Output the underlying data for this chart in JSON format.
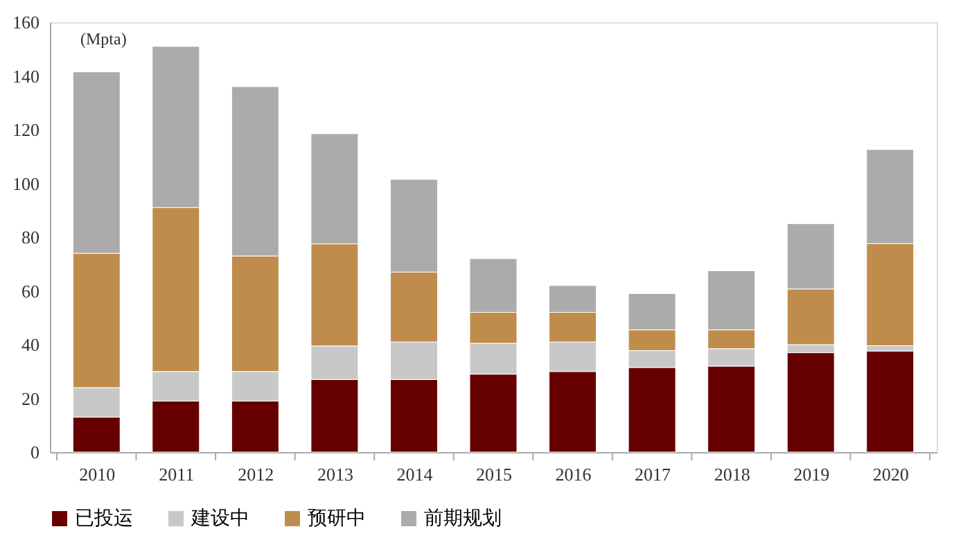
{
  "chart_data": {
    "type": "bar",
    "stacked": true,
    "ylabel": "(Mpta)",
    "categories": [
      "2010",
      "2011",
      "2012",
      "2013",
      "2014",
      "2015",
      "2016",
      "2017",
      "2018",
      "2019",
      "2020"
    ],
    "series": [
      {
        "name": "已投运",
        "color": "#660000",
        "values": [
          13,
          19,
          19,
          27,
          27,
          29,
          30,
          31.5,
          32,
          37,
          37.6
        ]
      },
      {
        "name": "建设中",
        "color": "#c8c8c8",
        "values": [
          11,
          11,
          11,
          12.5,
          14,
          11.5,
          11,
          6.3,
          6.5,
          3,
          2
        ]
      },
      {
        "name": "预研中",
        "color": "#c08c4c",
        "values": [
          50,
          61,
          43,
          38,
          26,
          11.5,
          11,
          7.7,
          7,
          20.7,
          38
        ]
      },
      {
        "name": "前期规划",
        "color": "#ababab",
        "values": [
          67.5,
          60,
          63,
          41,
          34.5,
          20,
          10,
          13.5,
          22,
          24.3,
          35
        ]
      }
    ],
    "ylim": [
      0,
      160
    ],
    "yticks": [
      0,
      20,
      40,
      60,
      80,
      100,
      120,
      140,
      160
    ],
    "grid": false,
    "legend": "bottom"
  }
}
